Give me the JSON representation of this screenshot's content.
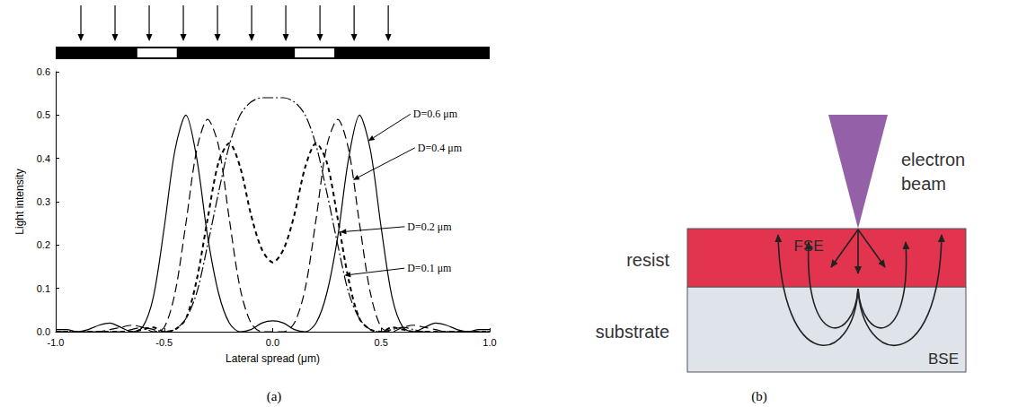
{
  "chart_data": {
    "type": "line",
    "xlabel": "Lateral spread (μm)",
    "ylabel": "Light intensity",
    "x": [
      -1,
      -0.95,
      -0.9,
      -0.85,
      -0.8,
      -0.75,
      -0.7,
      -0.65,
      -0.6,
      -0.55,
      -0.5,
      -0.45,
      -0.4,
      -0.35,
      -0.3,
      -0.25,
      -0.2,
      -0.15,
      -0.1,
      -0.05,
      0,
      0.05,
      0.1,
      0.15,
      0.2,
      0.25,
      0.3,
      0.35,
      0.4,
      0.45,
      0.5,
      0.55,
      0.6,
      0.65,
      0.7,
      0.75,
      0.8,
      0.85,
      0.9,
      0.95,
      1
    ],
    "xlim": [
      -1,
      1
    ],
    "ylim": [
      0,
      0.6
    ],
    "xticks": [
      {
        "value": -1,
        "label": "-1.0"
      },
      -0.5,
      {
        "value": 0,
        "label": "0.0"
      },
      0.5,
      {
        "value": 1,
        "label": "1.0"
      }
    ],
    "yticks": [
      {
        "value": 0,
        "label": "0.0"
      },
      0.1,
      0.2,
      0.3,
      0.4,
      0.5,
      0.6
    ],
    "grid": false,
    "series": [
      {
        "name": "D=0.6 μm",
        "color": "#000000",
        "line_style": "solid",
        "label_point": [
          0.44,
          0.44
        ],
        "values": [
          0.005,
          0.005,
          0,
          0.005,
          0.015,
          0.02,
          0.01,
          0,
          0.01,
          0.08,
          0.24,
          0.42,
          0.5,
          0.4,
          0.22,
          0.09,
          0.02,
          0,
          0.005,
          0.02,
          0.025,
          0.02,
          0.005,
          0,
          0.02,
          0.09,
          0.22,
          0.4,
          0.5,
          0.42,
          0.24,
          0.08,
          0.01,
          0,
          0.01,
          0.02,
          0.015,
          0.005,
          0,
          0.005,
          0.005
        ]
      },
      {
        "name": "D=0.4 μm",
        "color": "#000000",
        "line_style": "long_dash",
        "label_point": [
          0.37,
          0.35
        ],
        "values": [
          0,
          0,
          0,
          0,
          0,
          0.005,
          0.01,
          0.015,
          0.01,
          0,
          0.01,
          0.09,
          0.25,
          0.42,
          0.49,
          0.43,
          0.26,
          0.1,
          0.02,
          0,
          0,
          0,
          0.02,
          0.1,
          0.26,
          0.43,
          0.49,
          0.42,
          0.25,
          0.09,
          0.01,
          0,
          0.01,
          0.015,
          0.01,
          0.005,
          0,
          0,
          0,
          0,
          0
        ]
      },
      {
        "name": "D=0.2 μm",
        "color": "#000000",
        "line_style": "short_dash",
        "label_point": [
          0.31,
          0.23
        ],
        "values": [
          0,
          0,
          0,
          0,
          0,
          0,
          0,
          0,
          0.005,
          0.01,
          0,
          0.005,
          0.03,
          0.12,
          0.26,
          0.39,
          0.435,
          0.38,
          0.27,
          0.19,
          0.16,
          0.19,
          0.27,
          0.38,
          0.435,
          0.39,
          0.26,
          0.12,
          0.03,
          0.005,
          0,
          0.01,
          0.005,
          0,
          0,
          0,
          0,
          0,
          0,
          0,
          0
        ]
      },
      {
        "name": "D=0.1 μm",
        "color": "#000000",
        "line_style": "dash_dot",
        "label_point": [
          0.33,
          0.13
        ],
        "values": [
          0,
          0,
          0,
          0,
          0,
          0,
          0,
          0.005,
          0.01,
          0.005,
          0,
          0.005,
          0.03,
          0.09,
          0.2,
          0.32,
          0.43,
          0.5,
          0.53,
          0.54,
          0.54,
          0.54,
          0.53,
          0.5,
          0.43,
          0.32,
          0.2,
          0.09,
          0.03,
          0.005,
          0,
          0.005,
          0.01,
          0.005,
          0,
          0,
          0,
          0,
          0,
          0,
          0
        ]
      }
    ]
  },
  "panels": [
    "(a)",
    "(b)"
  ],
  "diagram": {
    "beam": "electron beam",
    "resist": "resist",
    "substrate": "substrate",
    "forward": "FSE",
    "back": "BSE"
  }
}
